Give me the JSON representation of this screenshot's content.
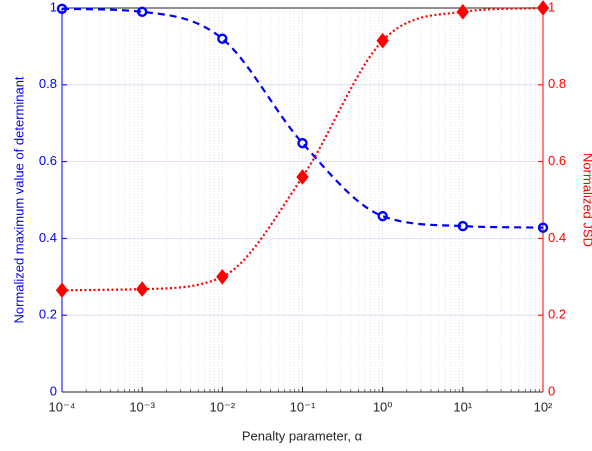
{
  "chart_data": {
    "type": "line",
    "x_label": "Penalty parameter, α",
    "y_label": "Normalized maximum value of determinant",
    "y2_label": "Normalized JSD",
    "xscale": "log",
    "x": [
      0.0001,
      0.001,
      0.01,
      0.1,
      1,
      10,
      100
    ],
    "xlim": [
      0.0001,
      100
    ],
    "xticks": [
      {
        "value": 0.0001,
        "label": "10⁻⁴"
      },
      {
        "value": 0.001,
        "label": "10⁻³"
      },
      {
        "value": 0.01,
        "label": "10⁻²"
      },
      {
        "value": 0.1,
        "label": "10⁻¹"
      },
      {
        "value": 1,
        "label": "10⁰"
      },
      {
        "value": 10,
        "label": "10¹"
      },
      {
        "value": 100,
        "label": "10²"
      }
    ],
    "ylim": [
      0,
      1
    ],
    "yticks": [
      0,
      0.2,
      0.4,
      0.6,
      0.8,
      1
    ],
    "y2lim": [
      0,
      1
    ],
    "y2ticks": [
      0,
      0.2,
      0.4,
      0.6,
      0.8,
      1
    ],
    "grid": true,
    "series": [
      {
        "name": "Normalized maximum value of determinant",
        "color": "#0000ff",
        "linestyle": "dashed",
        "marker": "circle",
        "values": [
          0.998,
          0.99,
          0.92,
          0.648,
          0.458,
          0.432,
          0.428
        ]
      },
      {
        "name": "Normalized JSD",
        "color": "#ff0000",
        "linestyle": "dotted",
        "marker": "diamond",
        "axis": "y2",
        "values": [
          0.265,
          0.268,
          0.3,
          0.56,
          0.915,
          0.99,
          1.0
        ]
      }
    ]
  }
}
